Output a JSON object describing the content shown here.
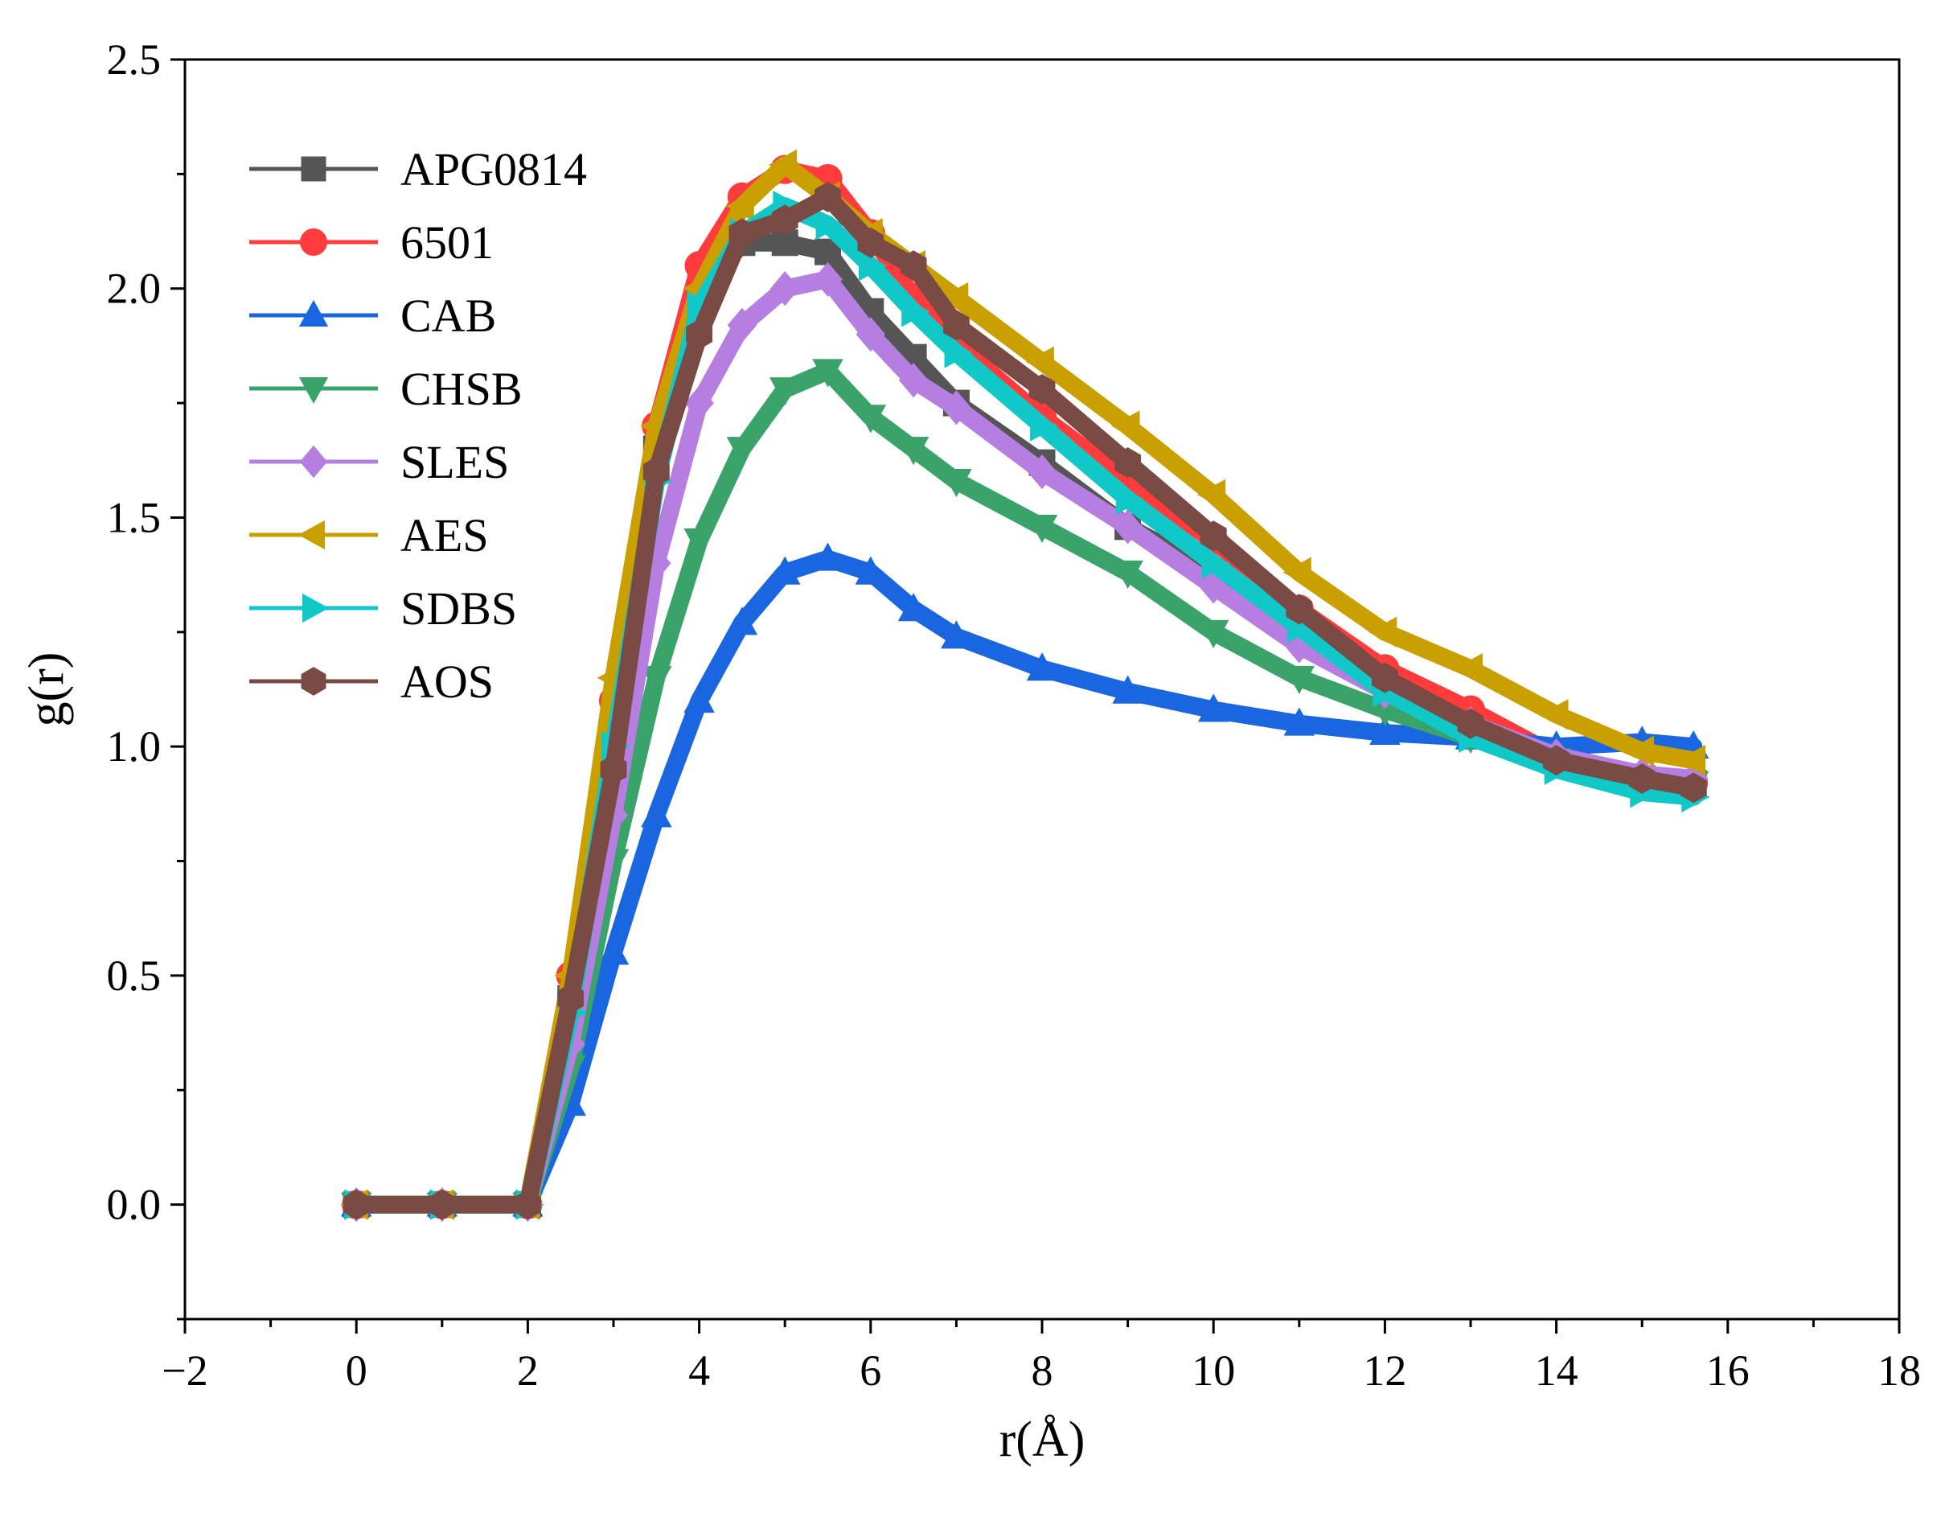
{
  "chart_data": {
    "type": "line",
    "title": "",
    "xlabel": "r(Å)",
    "ylabel": "g(r)",
    "xlim": [
      -2,
      18
    ],
    "ylim": [
      -0.25,
      2.5
    ],
    "x_ticks": [
      -2,
      0,
      2,
      4,
      6,
      8,
      10,
      12,
      14,
      16,
      18
    ],
    "x_tick_labels": [
      "−2",
      "0",
      "2",
      "4",
      "6",
      "8",
      "10",
      "12",
      "14",
      "16",
      "18"
    ],
    "y_ticks": [
      0.0,
      0.5,
      1.0,
      1.5,
      2.0,
      2.5
    ],
    "y_tick_labels": [
      "0.0",
      "0.5",
      "1.0",
      "1.5",
      "2.0",
      "2.5"
    ],
    "grid": false,
    "legend_position": "top-left",
    "series": [
      {
        "name": "APG0814",
        "color": "#555555",
        "marker": "square",
        "x": [
          0,
          1,
          2,
          2.5,
          3,
          3.5,
          4,
          4.5,
          5,
          5.5,
          6,
          6.5,
          7,
          8,
          9,
          10,
          11,
          12,
          13,
          14,
          15,
          15.6
        ],
        "y": [
          0,
          0,
          0,
          0.45,
          1.05,
          1.65,
          1.98,
          2.1,
          2.1,
          2.08,
          1.95,
          1.85,
          1.75,
          1.62,
          1.48,
          1.38,
          1.25,
          1.15,
          1.05,
          0.98,
          0.93,
          0.92
        ]
      },
      {
        "name": "6501",
        "color": "#ff3b3b",
        "marker": "circle",
        "x": [
          0,
          1,
          2,
          2.5,
          3,
          3.5,
          4,
          4.5,
          5,
          5.5,
          6,
          6.5,
          7,
          8,
          9,
          10,
          11,
          12,
          13,
          14,
          15,
          15.6
        ],
        "y": [
          0,
          0,
          0,
          0.5,
          1.1,
          1.7,
          2.05,
          2.2,
          2.26,
          2.24,
          2.12,
          1.98,
          1.88,
          1.72,
          1.58,
          1.45,
          1.3,
          1.17,
          1.08,
          0.98,
          0.93,
          0.92
        ]
      },
      {
        "name": "CAB",
        "color": "#1a66e0",
        "marker": "triangle-up",
        "x": [
          0,
          1,
          2,
          2.5,
          3,
          3.5,
          4,
          4.5,
          5,
          5.5,
          6,
          6.5,
          7,
          8,
          9,
          10,
          11,
          12,
          13,
          14,
          15,
          15.6
        ],
        "y": [
          0,
          0,
          0,
          0.22,
          0.55,
          0.85,
          1.1,
          1.27,
          1.38,
          1.41,
          1.38,
          1.3,
          1.24,
          1.17,
          1.12,
          1.08,
          1.05,
          1.03,
          1.02,
          1.0,
          1.01,
          1.0
        ]
      },
      {
        "name": "CHSB",
        "color": "#3aa36a",
        "marker": "triangle-down",
        "x": [
          0,
          1,
          2,
          2.5,
          3,
          3.5,
          4,
          4.5,
          5,
          5.5,
          6,
          6.5,
          7,
          8,
          9,
          10,
          11,
          12,
          13,
          14,
          15,
          15.6
        ],
        "y": [
          0,
          0,
          0,
          0.3,
          0.75,
          1.15,
          1.45,
          1.65,
          1.78,
          1.82,
          1.72,
          1.65,
          1.58,
          1.48,
          1.38,
          1.25,
          1.15,
          1.08,
          1.02,
          0.97,
          0.93,
          0.92
        ]
      },
      {
        "name": "SLES",
        "color": "#b57ee0",
        "marker": "diamond",
        "x": [
          0,
          1,
          2,
          2.5,
          3,
          3.5,
          4,
          4.5,
          5,
          5.5,
          6,
          6.5,
          7,
          8,
          9,
          10,
          11,
          12,
          13,
          14,
          15,
          15.6
        ],
        "y": [
          0,
          0,
          0,
          0.35,
          0.85,
          1.4,
          1.75,
          1.92,
          2.0,
          2.02,
          1.9,
          1.8,
          1.74,
          1.6,
          1.48,
          1.35,
          1.22,
          1.12,
          1.05,
          0.98,
          0.94,
          0.93
        ]
      },
      {
        "name": "AES",
        "color": "#c9a000",
        "marker": "triangle-left",
        "x": [
          0,
          1,
          2,
          2.5,
          3,
          3.5,
          4,
          4.5,
          5,
          5.5,
          6,
          6.5,
          7,
          8,
          9,
          10,
          11,
          12,
          13,
          14,
          15,
          15.6
        ],
        "y": [
          0,
          0,
          0,
          0.5,
          1.15,
          1.7,
          2.0,
          2.18,
          2.27,
          2.2,
          2.12,
          2.05,
          1.98,
          1.84,
          1.7,
          1.55,
          1.38,
          1.25,
          1.17,
          1.07,
          0.99,
          0.97
        ]
      },
      {
        "name": "SDBS",
        "color": "#10c8c8",
        "marker": "triangle-right",
        "x": [
          0,
          1,
          2,
          2.5,
          3,
          3.5,
          4,
          4.5,
          5,
          5.5,
          6,
          6.5,
          7,
          8,
          9,
          10,
          11,
          12,
          13,
          14,
          15,
          15.6
        ],
        "y": [
          0,
          0,
          0,
          0.42,
          1.0,
          1.58,
          1.96,
          2.12,
          2.18,
          2.14,
          2.05,
          1.95,
          1.86,
          1.7,
          1.54,
          1.4,
          1.26,
          1.12,
          1.02,
          0.95,
          0.9,
          0.89
        ]
      },
      {
        "name": "AOS",
        "color": "#7a4b45",
        "marker": "hexagon",
        "x": [
          0,
          1,
          2,
          2.5,
          3,
          3.5,
          4,
          4.5,
          5,
          5.5,
          6,
          6.5,
          7,
          8,
          9,
          10,
          11,
          12,
          13,
          14,
          15,
          15.6
        ],
        "y": [
          0,
          0,
          0,
          0.45,
          0.95,
          1.6,
          1.9,
          2.12,
          2.15,
          2.2,
          2.1,
          2.05,
          1.92,
          1.78,
          1.62,
          1.46,
          1.3,
          1.15,
          1.05,
          0.97,
          0.93,
          0.91
        ]
      }
    ]
  }
}
